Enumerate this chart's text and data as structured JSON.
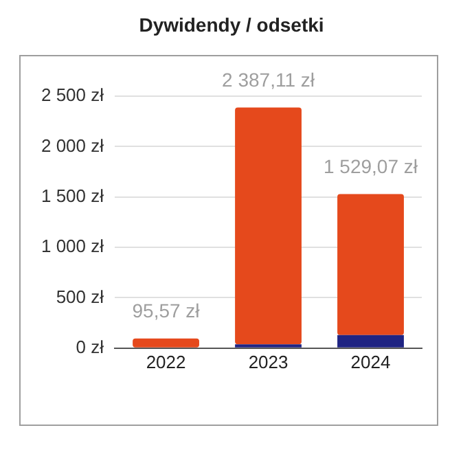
{
  "chart_data": {
    "type": "bar",
    "title": "Dywidendy / odsetki",
    "categories": [
      "2022",
      "2023",
      "2024"
    ],
    "stacked": true,
    "series": [
      {
        "color": "#1f2483",
        "values": [
          0,
          38,
          130
        ]
      },
      {
        "color": "#e5491c",
        "values": [
          95.57,
          2349.11,
          1399.07
        ]
      }
    ],
    "ylim": [
      0,
      2500
    ],
    "yticks": [
      {
        "value": 0,
        "label": "0 zł"
      },
      {
        "value": 500,
        "label": "500 zł"
      },
      {
        "value": 1000,
        "label": "1 000 zł"
      },
      {
        "value": 1500,
        "label": "1 500 zł"
      },
      {
        "value": 2000,
        "label": "2 000 zł"
      },
      {
        "value": 2500,
        "label": "2 500 zł"
      }
    ],
    "grid": "y",
    "legend": false,
    "totals": [
      "95,57 zł",
      "2 387,11 zł",
      "1 529,07 zł"
    ]
  }
}
